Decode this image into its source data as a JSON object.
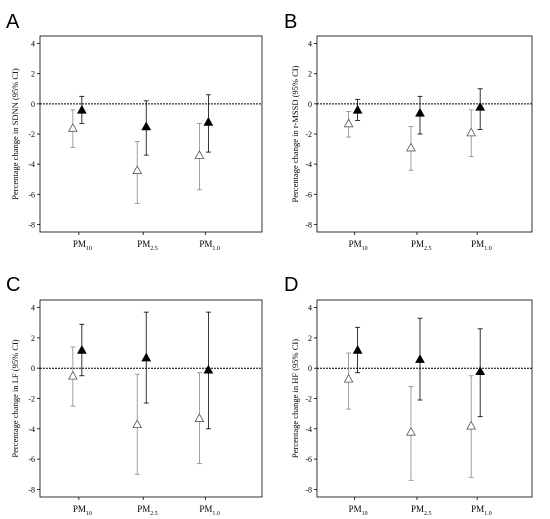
{
  "chart_data": [
    {
      "panel": "A",
      "type": "scatter",
      "ylabel": "Percentage change in SDNN (95% CI)",
      "ylim": [
        -8.5,
        4.5
      ],
      "yticks": [
        -8,
        -6,
        -4,
        -2,
        0,
        2,
        4
      ],
      "categories": [
        {
          "main": "PM",
          "sub": "10"
        },
        {
          "main": "PM",
          "sub": "2.5"
        },
        {
          "main": "PM",
          "sub": "1.0"
        }
      ],
      "series": [
        {
          "marker": "open-triangle",
          "values": [
            {
              "y": -1.6,
              "lo": -2.9,
              "hi": -0.4
            },
            {
              "y": -4.4,
              "lo": -6.6,
              "hi": -2.5
            },
            {
              "y": -3.4,
              "lo": -5.7,
              "hi": -1.3
            }
          ]
        },
        {
          "marker": "filled-triangle",
          "values": [
            {
              "y": -0.4,
              "lo": -1.3,
              "hi": 0.5
            },
            {
              "y": -1.5,
              "lo": -3.4,
              "hi": 0.2
            },
            {
              "y": -1.2,
              "lo": -3.2,
              "hi": 0.6
            }
          ]
        }
      ],
      "reference_line": 0
    },
    {
      "panel": "B",
      "type": "scatter",
      "ylabel": "Percentage change in r-MSSD (95% CI)",
      "ylim": [
        -8.5,
        4.5
      ],
      "yticks": [
        -8,
        -6,
        -4,
        -2,
        0,
        2,
        4
      ],
      "categories": [
        {
          "main": "PM",
          "sub": "10"
        },
        {
          "main": "PM",
          "sub": "2.5"
        },
        {
          "main": "PM",
          "sub": "1.0"
        }
      ],
      "series": [
        {
          "marker": "open-triangle",
          "values": [
            {
              "y": -1.3,
              "lo": -2.2,
              "hi": -0.5
            },
            {
              "y": -2.9,
              "lo": -4.4,
              "hi": -1.5
            },
            {
              "y": -1.9,
              "lo": -3.5,
              "hi": -0.4
            }
          ]
        },
        {
          "marker": "filled-triangle",
          "values": [
            {
              "y": -0.4,
              "lo": -1.1,
              "hi": 0.3
            },
            {
              "y": -0.6,
              "lo": -2.0,
              "hi": 0.5
            },
            {
              "y": -0.2,
              "lo": -1.7,
              "hi": 1.0
            }
          ]
        }
      ],
      "reference_line": 0
    },
    {
      "panel": "C",
      "type": "scatter",
      "ylabel": "Percentage change in LF (95% CI)",
      "ylim": [
        -8.5,
        4.5
      ],
      "yticks": [
        -8,
        -6,
        -4,
        -2,
        0,
        2,
        4
      ],
      "categories": [
        {
          "main": "PM",
          "sub": "10"
        },
        {
          "main": "PM",
          "sub": "2.5"
        },
        {
          "main": "PM",
          "sub": "1.0"
        }
      ],
      "series": [
        {
          "marker": "open-triangle",
          "values": [
            {
              "y": -0.5,
              "lo": -2.5,
              "hi": 1.4
            },
            {
              "y": -3.7,
              "lo": -7.0,
              "hi": -0.4
            },
            {
              "y": -3.3,
              "lo": -6.3,
              "hi": -0.3
            }
          ]
        },
        {
          "marker": "filled-triangle",
          "values": [
            {
              "y": 1.2,
              "lo": -0.5,
              "hi": 2.9
            },
            {
              "y": 0.7,
              "lo": -2.3,
              "hi": 3.7
            },
            {
              "y": -0.1,
              "lo": -4.0,
              "hi": 3.7
            }
          ]
        }
      ],
      "reference_line": 0
    },
    {
      "panel": "D",
      "type": "scatter",
      "ylabel": "Percentage change in HF (95% CI)",
      "ylim": [
        -8.5,
        4.5
      ],
      "yticks": [
        -8,
        -6,
        -4,
        -2,
        0,
        2,
        4
      ],
      "categories": [
        {
          "main": "PM",
          "sub": "10"
        },
        {
          "main": "PM",
          "sub": "2.5"
        },
        {
          "main": "PM",
          "sub": "1.0"
        }
      ],
      "series": [
        {
          "marker": "open-triangle",
          "values": [
            {
              "y": -0.7,
              "lo": -2.7,
              "hi": 1.0
            },
            {
              "y": -4.2,
              "lo": -7.4,
              "hi": -1.2
            },
            {
              "y": -3.8,
              "lo": -7.2,
              "hi": -0.5
            }
          ]
        },
        {
          "marker": "filled-triangle",
          "values": [
            {
              "y": 1.2,
              "lo": -0.3,
              "hi": 2.7
            },
            {
              "y": 0.6,
              "lo": -2.1,
              "hi": 3.3
            },
            {
              "y": -0.2,
              "lo": -3.2,
              "hi": 2.6
            }
          ]
        }
      ],
      "reference_line": 0
    }
  ]
}
